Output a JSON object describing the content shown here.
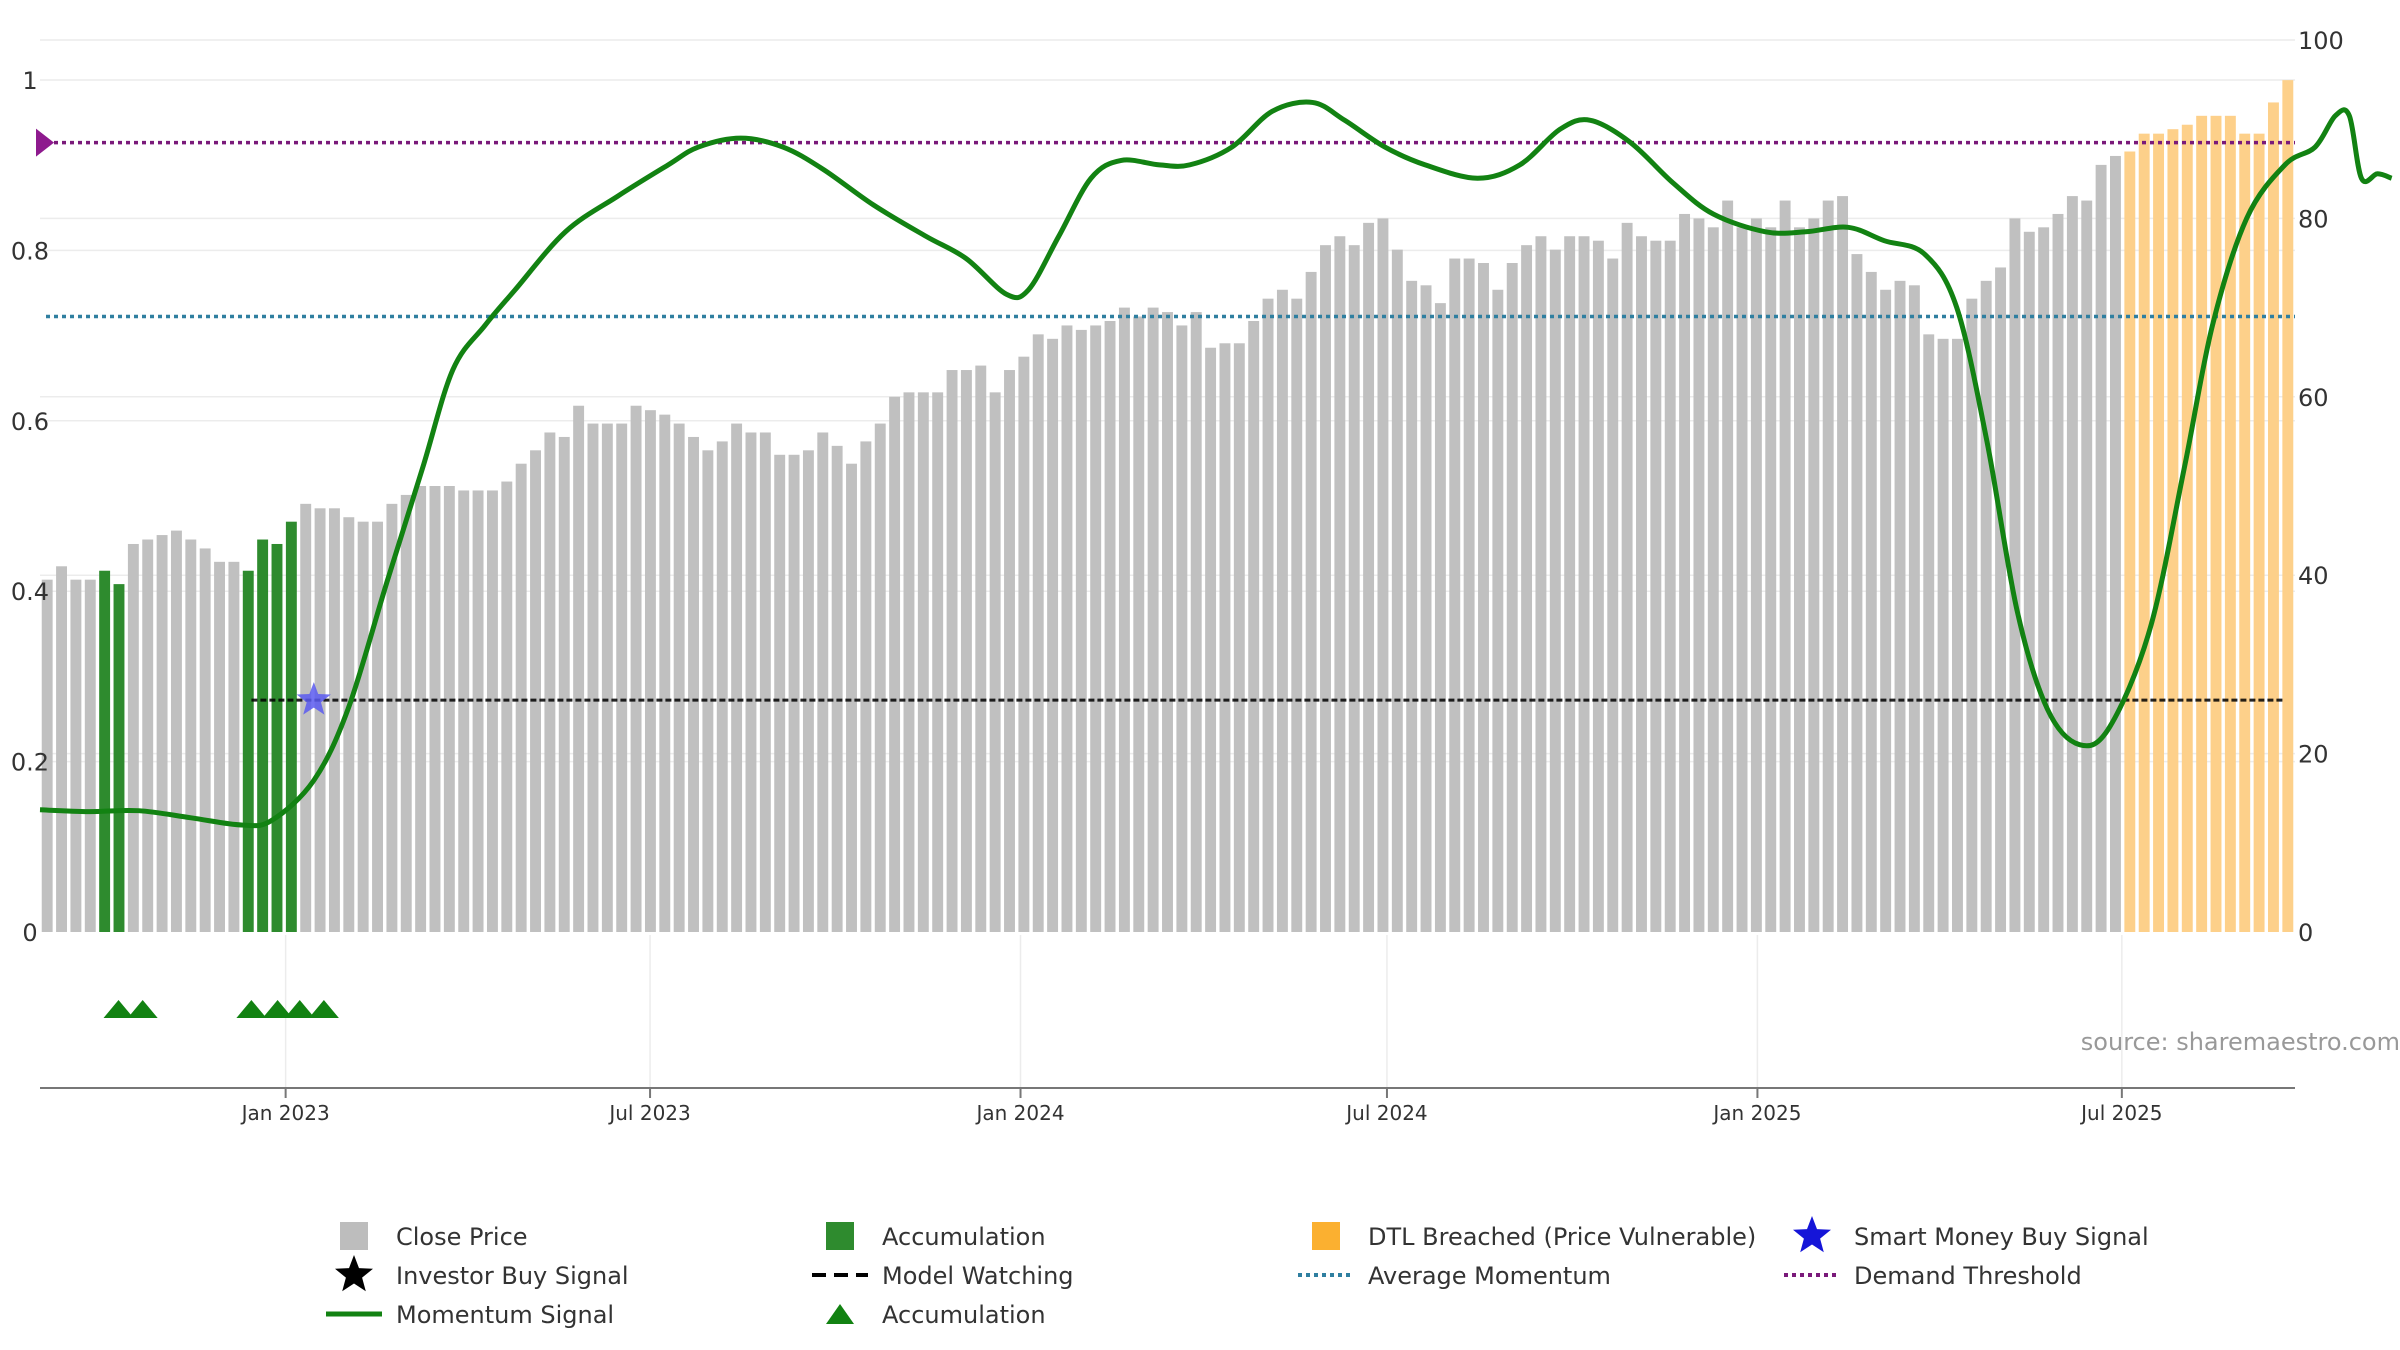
{
  "chart_data": {
    "type": "bar",
    "source": "source: sharemaestro.com",
    "left_axis": {
      "ticks": [
        "0",
        "0.2",
        "0.4",
        "0.6",
        "0.8",
        "1"
      ],
      "range": [
        0,
        1
      ]
    },
    "right_axis": {
      "ticks": [
        "0",
        "20",
        "40",
        "60",
        "80",
        "100"
      ],
      "range": [
        0,
        100
      ]
    },
    "x_axis": {
      "ticks": [
        "Jan 2023",
        "Jul 2023",
        "Jan 2024",
        "Jul 2024",
        "Jan 2025",
        "Jul 2025"
      ],
      "start": "2022-09-01",
      "end": "2025-09-25"
    },
    "close_price": [
      39.5,
      41,
      39.5,
      39.5,
      40.5,
      39,
      43.5,
      44,
      44.5,
      45,
      44,
      43,
      41.5,
      41.5,
      40.5,
      44,
      43.5,
      46,
      48,
      47.5,
      47.5,
      46.5,
      46,
      46,
      48,
      49,
      50,
      50,
      50,
      49.5,
      49.5,
      49.5,
      50.5,
      52.5,
      54,
      56,
      55.5,
      59,
      57,
      57,
      57,
      59,
      58.5,
      58,
      57,
      55.5,
      54,
      55,
      57,
      56,
      56,
      53.5,
      53.5,
      54,
      56,
      54.5,
      52.5,
      55,
      57,
      60,
      60.5,
      60.5,
      60.5,
      63,
      63,
      63.5,
      60.5,
      63,
      64.5,
      67,
      66.5,
      68,
      67.5,
      68,
      68.5,
      70,
      69,
      70,
      69.5,
      68,
      69.5,
      65.5,
      66,
      66,
      68.5,
      71,
      72,
      71,
      74,
      77,
      78,
      77,
      79.5,
      80,
      76.5,
      73,
      72.5,
      70.5,
      75.5,
      75.5,
      75,
      72,
      75,
      77,
      78,
      76.5,
      78,
      78,
      77.5,
      75.5,
      79.5,
      78,
      77.5,
      77.5,
      80.5,
      80,
      79,
      82,
      79,
      80,
      79,
      82,
      79,
      80,
      82,
      82.5,
      76,
      74,
      72,
      73,
      72.5,
      67,
      66.5,
      66.5,
      71,
      73,
      74.5,
      80,
      78.5,
      79,
      80.5,
      82.5,
      82,
      86,
      87,
      87.5,
      89.5,
      89.5,
      90,
      90.5,
      91.5,
      91.5,
      91.5,
      89.5,
      89.5,
      93,
      95.5
    ],
    "bar_colors": {
      "close_price": "#c0c0c0",
      "accumulation": "#2e8b2e",
      "dtl_breached": "#fdd08a"
    },
    "accumulation_bar_indices": [
      4,
      5,
      14,
      15,
      16,
      17
    ],
    "dtl_breached_from_index": 145,
    "momentum": [
      [
        "2022-09-01",
        13.7
      ],
      [
        "2022-09-25",
        13.5
      ],
      [
        "2022-10-20",
        13.6
      ],
      [
        "2022-11-15",
        12.8
      ],
      [
        "2022-12-10",
        12
      ],
      [
        "2022-12-25",
        12.5
      ],
      [
        "2023-01-15",
        17
      ],
      [
        "2023-02-01",
        25
      ],
      [
        "2023-02-20",
        39
      ],
      [
        "2023-03-10",
        52
      ],
      [
        "2023-03-25",
        63
      ],
      [
        "2023-04-10",
        68
      ],
      [
        "2023-04-25",
        72
      ],
      [
        "2023-05-20",
        78.5
      ],
      [
        "2023-06-15",
        82.5
      ],
      [
        "2023-07-10",
        86
      ],
      [
        "2023-07-25",
        88
      ],
      [
        "2023-08-15",
        89
      ],
      [
        "2023-09-05",
        88
      ],
      [
        "2023-09-25",
        85.5
      ],
      [
        "2023-10-20",
        81.5
      ],
      [
        "2023-11-15",
        78
      ],
      [
        "2023-12-05",
        75.5
      ],
      [
        "2023-12-25",
        71.5
      ],
      [
        "2024-01-05",
        72
      ],
      [
        "2024-01-20",
        78
      ],
      [
        "2024-02-05",
        84.5
      ],
      [
        "2024-02-20",
        86.5
      ],
      [
        "2024-03-10",
        86
      ],
      [
        "2024-03-25",
        86
      ],
      [
        "2024-04-15",
        88
      ],
      [
        "2024-05-05",
        92
      ],
      [
        "2024-05-25",
        93
      ],
      [
        "2024-06-10",
        91
      ],
      [
        "2024-06-30",
        88
      ],
      [
        "2024-07-20",
        86
      ],
      [
        "2024-08-15",
        84.5
      ],
      [
        "2024-09-05",
        86
      ],
      [
        "2024-09-25",
        90
      ],
      [
        "2024-10-10",
        91
      ],
      [
        "2024-10-30",
        88.5
      ],
      [
        "2024-11-20",
        84
      ],
      [
        "2024-12-10",
        80.5
      ],
      [
        "2025-01-05",
        78.5
      ],
      [
        "2025-01-25",
        78.5
      ],
      [
        "2025-02-15",
        79
      ],
      [
        "2025-03-05",
        77.5
      ],
      [
        "2025-03-25",
        76
      ],
      [
        "2025-04-10",
        70
      ],
      [
        "2025-04-25",
        55
      ],
      [
        "2025-05-10",
        36
      ],
      [
        "2025-05-25",
        25
      ],
      [
        "2025-06-10",
        21
      ],
      [
        "2025-06-25",
        23
      ],
      [
        "2025-07-15",
        34
      ],
      [
        "2025-08-01",
        52
      ],
      [
        "2025-08-15",
        68
      ],
      [
        "2025-09-01",
        80
      ],
      [
        "2025-09-20",
        86
      ],
      [
        "2025-10-05",
        88
      ],
      [
        "2025-10-15",
        91.5
      ],
      [
        "2025-10-22",
        91.5
      ],
      [
        "2025-10-28",
        84.5
      ],
      [
        "2025-11-05",
        85
      ],
      [
        "2025-11-12",
        84.5
      ]
    ],
    "momentum_line_color": "#128212",
    "thresholds": {
      "demand_threshold": {
        "value": 88.5,
        "color": "#7a1a7a"
      },
      "average_momentum": {
        "value": 69,
        "color": "#2f7fa0"
      },
      "model_watching": {
        "value": 26,
        "start": "2022-12-15",
        "color": "#000000"
      }
    },
    "signals": {
      "smart_money_buy": [
        {
          "date": "2023-01-15",
          "value": 26
        }
      ],
      "accumulation_triangles": [
        "2022-10-10",
        "2022-10-22",
        "2022-12-15",
        "2022-12-28",
        "2023-01-08",
        "2023-01-20"
      ]
    },
    "legend": [
      {
        "label": "Close Price",
        "symbol": "square",
        "color": "#bdbdbd"
      },
      {
        "label": "Accumulation",
        "symbol": "square",
        "color": "#2e8b2e"
      },
      {
        "label": "DTL Breached (Price Vulnerable)",
        "symbol": "square",
        "color": "#fbb030"
      },
      {
        "label": "Smart Money Buy Signal",
        "symbol": "star",
        "color": "#1515d8"
      },
      {
        "label": "Investor Buy Signal",
        "symbol": "star",
        "color": "#000000"
      },
      {
        "label": "Model Watching",
        "symbol": "dash",
        "color": "#000000"
      },
      {
        "label": "Average Momentum",
        "symbol": "dot",
        "color": "#2f7fa0"
      },
      {
        "label": "Demand Threshold",
        "symbol": "dot",
        "color": "#7a1a7a"
      },
      {
        "label": "Momentum Signal",
        "symbol": "line",
        "color": "#128212"
      },
      {
        "label": "Accumulation",
        "symbol": "triangle",
        "color": "#128212"
      }
    ]
  }
}
